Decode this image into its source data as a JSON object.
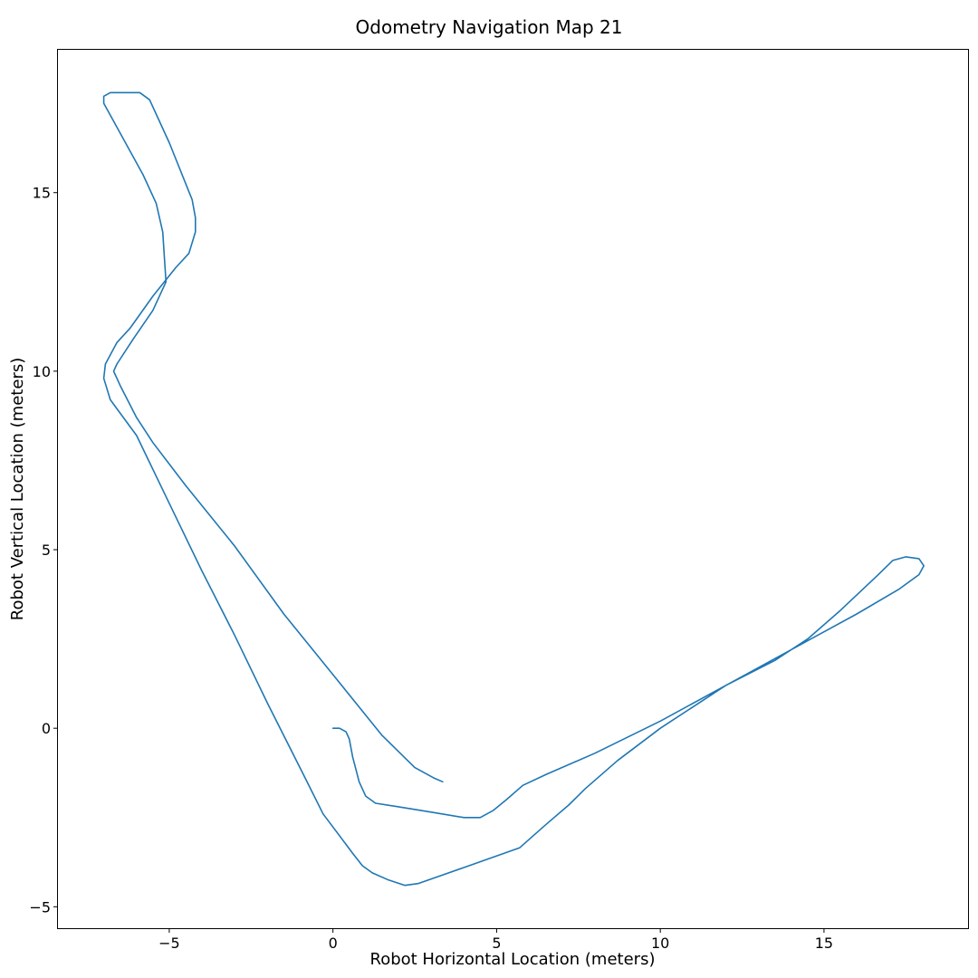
{
  "chart_data": {
    "type": "line",
    "title": "Odometry Navigation Map 21",
    "xlabel": "Robot Horizontal Location (meters)",
    "ylabel": "Robot Vertical Location (meters)",
    "xlim": [
      -8.4,
      19.4
    ],
    "ylim": [
      -5.6,
      19.0
    ],
    "xticks": [
      -5,
      0,
      5,
      10,
      15
    ],
    "yticks": [
      -5,
      0,
      5,
      10,
      15
    ],
    "xtick_labels": [
      "−5",
      "0",
      "5",
      "10",
      "15"
    ],
    "ytick_labels": [
      "−5",
      "0",
      "5",
      "10",
      "15"
    ],
    "grid": false,
    "line_color": "#1f77b4",
    "series": [
      {
        "points": [
          [
            0.0,
            0.0
          ],
          [
            0.2,
            0.0
          ],
          [
            0.4,
            -0.1
          ],
          [
            0.5,
            -0.3
          ],
          [
            0.6,
            -0.8
          ],
          [
            0.8,
            -1.5
          ],
          [
            1.0,
            -1.9
          ],
          [
            1.3,
            -2.1
          ],
          [
            2.0,
            -2.2
          ],
          [
            3.0,
            -2.35
          ],
          [
            4.0,
            -2.5
          ],
          [
            4.5,
            -2.5
          ],
          [
            4.9,
            -2.3
          ],
          [
            5.3,
            -2.0
          ],
          [
            5.8,
            -1.6
          ],
          [
            6.5,
            -1.3
          ],
          [
            8.0,
            -0.7
          ],
          [
            10.0,
            0.2
          ],
          [
            12.0,
            1.2
          ],
          [
            14.0,
            2.2
          ],
          [
            16.0,
            3.2
          ],
          [
            17.3,
            3.9
          ],
          [
            17.9,
            4.3
          ],
          [
            18.05,
            4.55
          ],
          [
            17.9,
            4.75
          ],
          [
            17.5,
            4.8
          ],
          [
            17.1,
            4.7
          ],
          [
            16.6,
            4.25
          ],
          [
            15.5,
            3.3
          ],
          [
            14.5,
            2.5
          ],
          [
            13.5,
            1.9
          ],
          [
            12.0,
            1.2
          ],
          [
            10.0,
            0.0
          ],
          [
            8.7,
            -0.9
          ],
          [
            7.7,
            -1.7
          ],
          [
            7.2,
            -2.15
          ],
          [
            6.5,
            -2.7
          ],
          [
            5.7,
            -3.35
          ],
          [
            4.0,
            -3.9
          ],
          [
            2.6,
            -4.35
          ],
          [
            2.2,
            -4.4
          ],
          [
            1.7,
            -4.25
          ],
          [
            1.2,
            -4.05
          ],
          [
            0.9,
            -3.85
          ],
          [
            0.6,
            -3.5
          ],
          [
            -0.3,
            -2.4
          ],
          [
            -0.9,
            -1.3
          ],
          [
            -2.0,
            0.7
          ],
          [
            -3.0,
            2.6
          ],
          [
            -4.0,
            4.4
          ],
          [
            -5.0,
            6.3
          ],
          [
            -6.0,
            8.2
          ],
          [
            -6.8,
            9.2
          ],
          [
            -7.0,
            9.8
          ],
          [
            -6.95,
            10.2
          ],
          [
            -6.6,
            10.8
          ],
          [
            -6.2,
            11.2
          ],
          [
            -5.5,
            12.1
          ],
          [
            -4.8,
            12.9
          ],
          [
            -4.4,
            13.3
          ],
          [
            -4.2,
            13.9
          ],
          [
            -4.2,
            14.3
          ],
          [
            -4.3,
            14.8
          ],
          [
            -5.0,
            16.4
          ],
          [
            -5.6,
            17.6
          ],
          [
            -5.9,
            17.8
          ],
          [
            -6.8,
            17.8
          ],
          [
            -7.0,
            17.7
          ],
          [
            -7.0,
            17.5
          ],
          [
            -6.7,
            17.0
          ],
          [
            -5.8,
            15.5
          ],
          [
            -5.4,
            14.7
          ],
          [
            -5.2,
            13.9
          ],
          [
            -5.1,
            12.5
          ],
          [
            -5.5,
            11.7
          ],
          [
            -6.1,
            10.9
          ],
          [
            -6.6,
            10.2
          ],
          [
            -6.7,
            10.0
          ],
          [
            -6.5,
            9.6
          ],
          [
            -6.0,
            8.7
          ],
          [
            -5.5,
            8.0
          ],
          [
            -4.5,
            6.8
          ],
          [
            -3.0,
            5.1
          ],
          [
            -1.5,
            3.2
          ],
          [
            0.0,
            1.5
          ],
          [
            1.5,
            -0.2
          ],
          [
            2.5,
            -1.1
          ],
          [
            3.1,
            -1.4
          ],
          [
            3.35,
            -1.5
          ]
        ]
      }
    ]
  }
}
